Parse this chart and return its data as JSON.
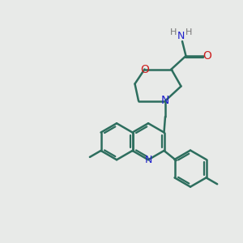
{
  "bg_color": "#e8eae8",
  "bond_color": "#2d6e5e",
  "N_color": "#2020cc",
  "O_color": "#cc2020",
  "H_color": "#777777",
  "line_width": 1.8,
  "figsize": [
    3.0,
    3.0
  ],
  "dpi": 100,
  "xlim": [
    0,
    10
  ],
  "ylim": [
    0,
    10
  ]
}
